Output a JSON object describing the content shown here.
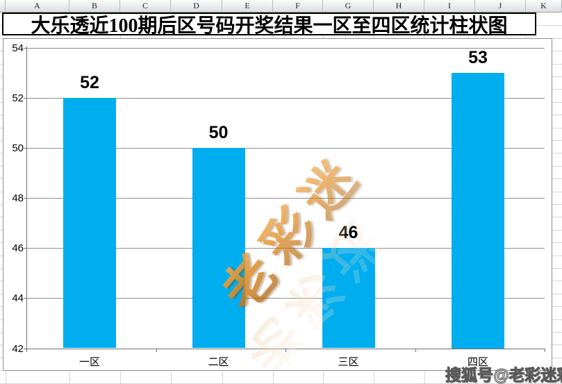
{
  "spreadsheet": {
    "column_headers": [
      "A",
      "B",
      "C",
      "D",
      "E",
      "F",
      "G",
      "H",
      "I",
      "J",
      "K"
    ]
  },
  "title": {
    "text": "大乐透近100期后区号码开奖结果一区至四区统计柱状图"
  },
  "chart_data": {
    "type": "bar",
    "title": "大乐透近100期后区号码开奖结果一区至四区统计柱状图",
    "categories": [
      "一区",
      "二区",
      "三区",
      "四区"
    ],
    "values": [
      52,
      50,
      46,
      53
    ],
    "data_labels": [
      "52",
      "50",
      "46",
      "53"
    ],
    "xlabel": "",
    "ylabel": "",
    "y_ticks": [
      54,
      52,
      50,
      48,
      46,
      44,
      42
    ],
    "ylim": [
      42,
      54
    ],
    "bar_color": "#00AEEF",
    "gridlines": true,
    "legend": "none"
  },
  "watermark": {
    "text": "老彩迷",
    "reflection_text": "老彩迷"
  },
  "footer": {
    "sohu_watermark": "搜狐号@老彩迷彩票"
  }
}
